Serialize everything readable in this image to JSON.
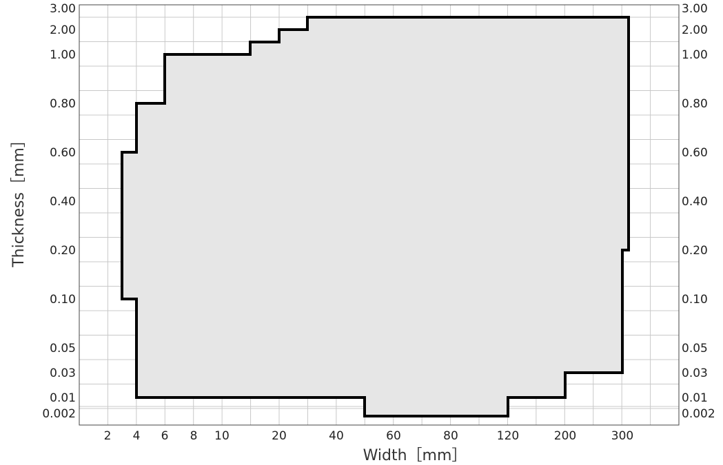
{
  "chart_data": {
    "type": "area",
    "xlabel": "Width［mm］",
    "ylabel": "Thickness［mm］",
    "x_axis": {
      "scale": "categorical-uneven",
      "ticks": [
        "2",
        "4",
        "6",
        "8",
        "10",
        "20",
        "40",
        "60",
        "80",
        "120",
        "200",
        "300"
      ],
      "range": [
        1,
        350
      ]
    },
    "y_axis": {
      "scale": "categorical-uneven",
      "ticks_left": [
        "3.00",
        "2.00",
        "1.00",
        "0.80",
        "0.60",
        "0.40",
        "0.20",
        "0.10",
        "0.05",
        "0.03",
        "0.01",
        "0.002"
      ],
      "ticks_right": [
        "3.00",
        "2.00",
        "1.00",
        "0.80",
        "0.60",
        "0.40",
        "0.20",
        "0.10",
        "0.05",
        "0.03",
        "0.01",
        "0.002"
      ]
    },
    "grid": true,
    "fill_color": "#e6e6e6",
    "outline_color": "#000000",
    "series": [
      {
        "name": "",
        "boundary": [
          {
            "width": 4,
            "thickness": 0.01
          },
          {
            "width": 4,
            "thickness": 0.1
          },
          {
            "width": 3,
            "thickness": 0.1
          },
          {
            "width": 3,
            "thickness": 0.6
          },
          {
            "width": 4,
            "thickness": 0.6
          },
          {
            "width": 4,
            "thickness": 0.8
          },
          {
            "width": 6,
            "thickness": 0.8
          },
          {
            "width": 6,
            "thickness": 1.0
          },
          {
            "width": 14,
            "thickness": 1.0
          },
          {
            "width": 14,
            "thickness": 1.5
          },
          {
            "width": 20,
            "thickness": 1.5
          },
          {
            "width": 20,
            "thickness": 2.0
          },
          {
            "width": 30,
            "thickness": 2.0
          },
          {
            "width": 30,
            "thickness": 2.5
          },
          {
            "width": 310,
            "thickness": 2.5
          },
          {
            "width": 310,
            "thickness": 0.2
          },
          {
            "width": 300,
            "thickness": 0.2
          },
          {
            "width": 300,
            "thickness": 0.03
          },
          {
            "width": 200,
            "thickness": 0.03
          },
          {
            "width": 200,
            "thickness": 0.01
          },
          {
            "width": 120,
            "thickness": 0.01
          },
          {
            "width": 120,
            "thickness": 0.002
          },
          {
            "width": 50,
            "thickness": 0.002
          },
          {
            "width": 50,
            "thickness": 0.01
          },
          {
            "width": 4,
            "thickness": 0.01
          }
        ]
      }
    ]
  }
}
